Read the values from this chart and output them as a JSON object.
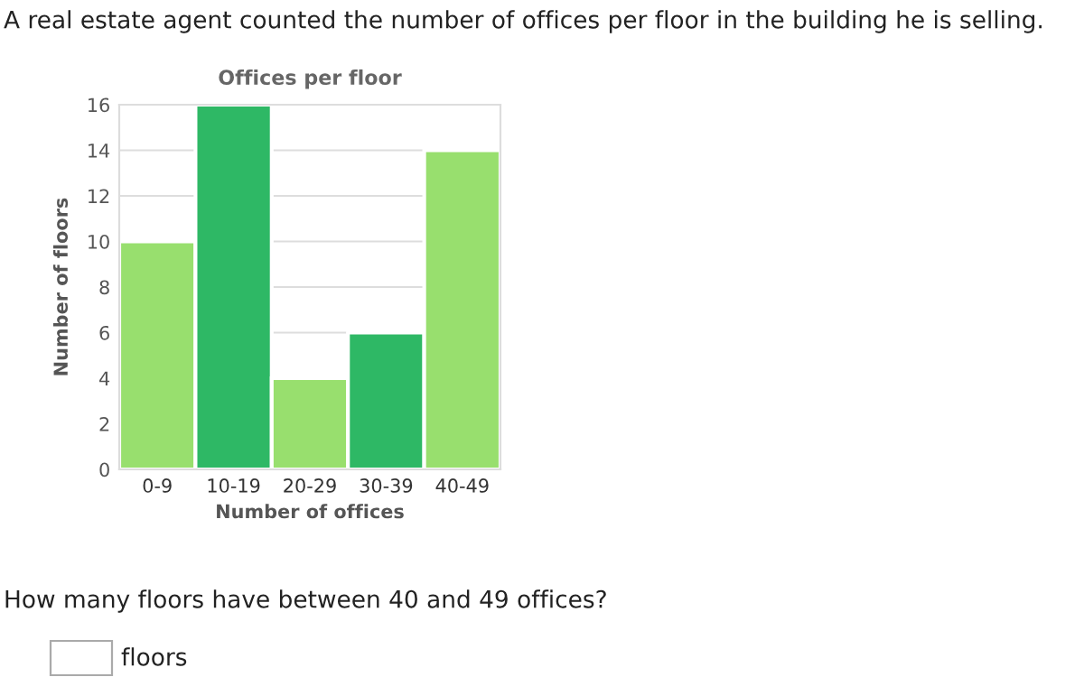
{
  "chart_data": {
    "type": "bar",
    "title": "Offices per floor",
    "xlabel": "Number of offices",
    "ylabel": "Number of floors",
    "categories": [
      "0-9",
      "10-19",
      "20-29",
      "30-39",
      "40-49"
    ],
    "values": [
      10,
      16,
      4,
      6,
      14
    ],
    "colors": [
      "#98df6e",
      "#2eb865",
      "#98df6e",
      "#2eb865",
      "#98df6e"
    ],
    "ylim": [
      0,
      16
    ],
    "yticks": [
      0,
      2,
      4,
      6,
      8,
      10,
      12,
      14,
      16
    ],
    "grid": "y",
    "annotations": [
      "A real estate agent counted the number of offices per floor in the building he is selling.",
      "How many floors have between 40 and 49 offices?",
      "floors"
    ]
  }
}
